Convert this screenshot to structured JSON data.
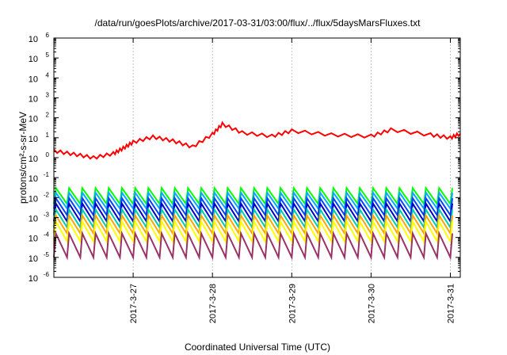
{
  "chart_data": {
    "type": "line",
    "title": "/data/run/goesPlots/archive/2017-03-31/03:00/flux/../flux/5daysMarsFluxes.txt",
    "xlabel": "Coordinated Universal Time (UTC)",
    "ylabel": "protons/cm²-s-sr-MeV",
    "yscale": "log",
    "ylim": [
      1e-06,
      1000000.0
    ],
    "xlim": [
      "2017-03-26 00:00",
      "2017-03-31 03:00"
    ],
    "y_ticks": [
      {
        "base": "10",
        "exp": "-6"
      },
      {
        "base": "10",
        "exp": "-5"
      },
      {
        "base": "10",
        "exp": "-4"
      },
      {
        "base": "10",
        "exp": "-3"
      },
      {
        "base": "10",
        "exp": "-2"
      },
      {
        "base": "10",
        "exp": "-1"
      },
      {
        "base": "10",
        "exp": "0"
      },
      {
        "base": "10",
        "exp": "1"
      },
      {
        "base": "10",
        "exp": "2"
      },
      {
        "base": "10",
        "exp": "3"
      },
      {
        "base": "10",
        "exp": "4"
      },
      {
        "base": "10",
        "exp": "5"
      },
      {
        "base": "10",
        "exp": "6"
      }
    ],
    "x_ticks": [
      "2017-3-27",
      "2017-3-28",
      "2017-3-29",
      "2017-3-30",
      "2017-3-31"
    ],
    "grid": true,
    "legend": "none",
    "series": [
      {
        "color": "#ff0000",
        "points": [
          [
            "2017-03-26 00:00",
            2.2
          ],
          [
            "2017-03-26 06:00",
            1.5
          ],
          [
            "2017-03-26 12:00",
            1.0
          ],
          [
            "2017-03-26 18:00",
            1.6
          ],
          [
            "2017-03-26 21:00",
            3.0
          ],
          [
            "2017-03-27 00:00",
            6.0
          ],
          [
            "2017-03-27 06:00",
            11.0
          ],
          [
            "2017-03-27 12:00",
            7.0
          ],
          [
            "2017-03-27 18:00",
            3.5
          ],
          [
            "2017-03-28 00:00",
            15.0
          ],
          [
            "2017-03-28 03:00",
            48.0
          ],
          [
            "2017-03-28 09:00",
            18.0
          ],
          [
            "2017-03-28 18:00",
            12.0
          ],
          [
            "2017-03-29 00:00",
            22.0
          ],
          [
            "2017-03-29 12:00",
            14.0
          ],
          [
            "2017-03-30 00:00",
            12.0
          ],
          [
            "2017-03-30 06:00",
            25.0
          ],
          [
            "2017-03-30 18:00",
            14.0
          ],
          [
            "2017-03-31 00:00",
            10.0
          ],
          [
            "2017-03-31 03:00",
            16.0
          ]
        ]
      },
      {
        "color": "#00ff00",
        "base": 0.012,
        "amp": 0.8
      },
      {
        "color": "#00aaff",
        "base": 0.007,
        "amp": 0.8
      },
      {
        "color": "#0044ff",
        "base": 0.0035,
        "amp": 0.85
      },
      {
        "color": "#0000cc",
        "base": 0.0018,
        "amp": 0.9
      },
      {
        "color": "#00ccaa",
        "base": 0.0009,
        "amp": 0.9
      },
      {
        "color": "#ffa500",
        "base": 0.00045,
        "amp": 0.9
      },
      {
        "color": "#ffff00",
        "base": 0.0002,
        "amp": 1.0
      },
      {
        "color": "#993366",
        "base": 4e-05,
        "amp": 1.2
      }
    ]
  }
}
